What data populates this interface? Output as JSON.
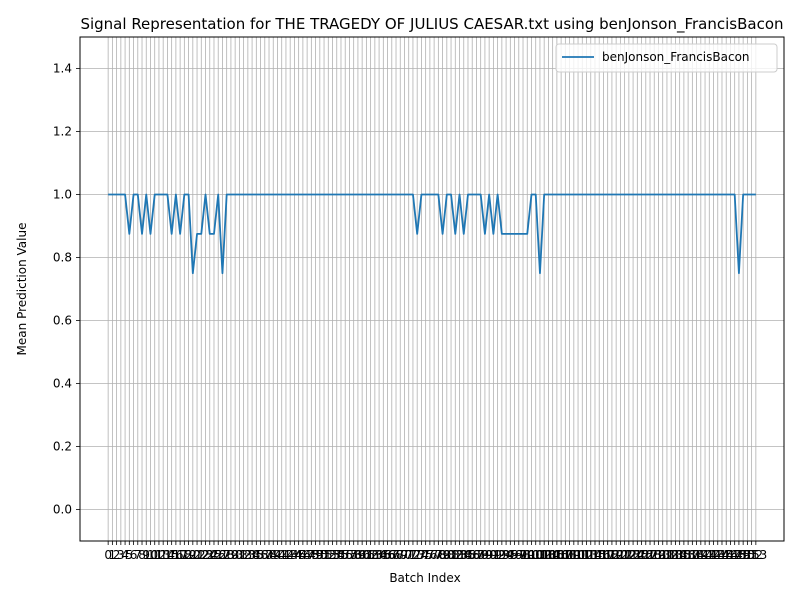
{
  "chart_data": {
    "type": "line",
    "title": "Signal Representation for THE TRAGEDY OF JULIUS CAESAR.txt using benJonson_FrancisBacon",
    "xlabel": "Batch Index",
    "ylabel": "Mean Prediction Value",
    "ylim": [
      -0.1,
      1.5
    ],
    "xlim": [
      -6.65,
      159.65
    ],
    "grid": true,
    "legend_position": "top-right",
    "y_ticks": [
      "0.0",
      "0.2",
      "0.4",
      "0.6",
      "0.8",
      "1.0",
      "1.2",
      "1.4"
    ],
    "x_tick_count": 154,
    "colors": {
      "series": "#1f77b4",
      "grid": "#b0b0b0"
    },
    "series": [
      {
        "name": "benJonson_FrancisBacon",
        "x": [
          0,
          1,
          2,
          3,
          4,
          5,
          6,
          7,
          8,
          9,
          10,
          11,
          12,
          13,
          14,
          15,
          16,
          17,
          18,
          19,
          20,
          21,
          22,
          23,
          24,
          25,
          26,
          27,
          28,
          29,
          30,
          31,
          32,
          33,
          34,
          35,
          36,
          37,
          38,
          39,
          40,
          41,
          42,
          43,
          44,
          45,
          46,
          47,
          48,
          49,
          50,
          51,
          52,
          53,
          54,
          55,
          56,
          57,
          58,
          59,
          60,
          61,
          62,
          63,
          64,
          65,
          66,
          67,
          68,
          69,
          70,
          71,
          72,
          73,
          74,
          75,
          76,
          77,
          78,
          79,
          80,
          81,
          82,
          83,
          84,
          85,
          86,
          87,
          88,
          89,
          90,
          91,
          92,
          93,
          94,
          95,
          96,
          97,
          98,
          99,
          100,
          101,
          102,
          103,
          104,
          105,
          106,
          107,
          108,
          109,
          110,
          111,
          112,
          113,
          114,
          115,
          116,
          117,
          118,
          119,
          120,
          121,
          122,
          123,
          124,
          125,
          126,
          127,
          128,
          129,
          130,
          131,
          132,
          133,
          134,
          135,
          136,
          137,
          138,
          139,
          140,
          141,
          142,
          143,
          144,
          145,
          146,
          147,
          148,
          149,
          150,
          151,
          152,
          153
        ],
        "values": [
          1,
          1,
          1,
          1,
          1,
          0.875,
          1,
          1,
          0.875,
          1,
          0.875,
          1,
          1,
          1,
          1,
          0.875,
          1,
          0.875,
          1,
          1,
          0.75,
          0.875,
          0.875,
          1,
          0.875,
          0.875,
          1,
          0.75,
          1,
          1,
          1,
          1,
          1,
          1,
          1,
          1,
          1,
          1,
          1,
          1,
          1,
          1,
          1,
          1,
          1,
          1,
          1,
          1,
          1,
          1,
          1,
          1,
          1,
          1,
          1,
          1,
          1,
          1,
          1,
          1,
          1,
          1,
          1,
          1,
          1,
          1,
          1,
          1,
          1,
          1,
          1,
          1,
          1,
          0.875,
          1,
          1,
          1,
          1,
          1,
          0.875,
          1,
          1,
          0.875,
          1,
          0.875,
          1,
          1,
          1,
          1,
          0.875,
          1,
          0.875,
          1,
          0.875,
          0.875,
          0.875,
          0.875,
          0.875,
          0.875,
          0.875,
          1,
          1,
          0.75,
          1,
          1,
          1,
          1,
          1,
          1,
          1,
          1,
          1,
          1,
          1,
          1,
          1,
          1,
          1,
          1,
          1,
          1,
          1,
          1,
          1,
          1,
          1,
          1,
          1,
          1,
          1,
          1,
          1,
          1,
          1,
          1,
          1,
          1,
          1,
          1,
          1,
          1,
          1,
          1,
          1,
          1,
          1,
          1,
          1,
          1,
          0.75,
          1,
          1,
          1,
          1
        ]
      }
    ]
  }
}
